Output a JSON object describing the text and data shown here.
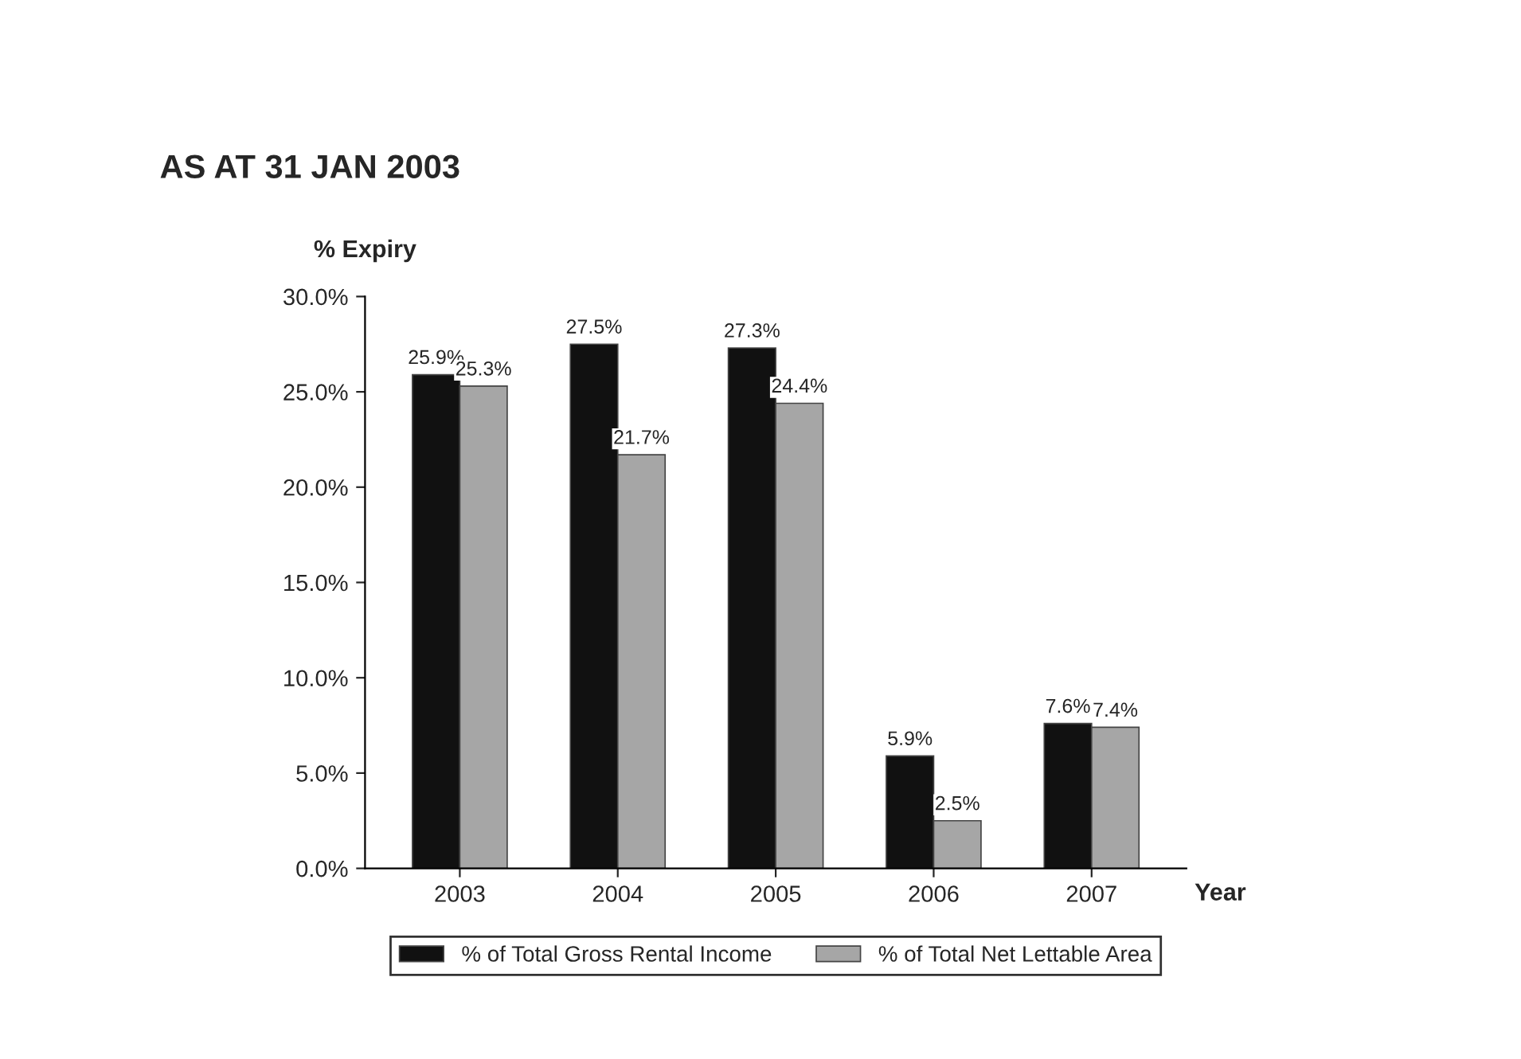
{
  "chart_data": {
    "type": "bar",
    "title": "AS AT 31 JAN 2003",
    "ylabel": "% Expiry",
    "xlabel": "Year",
    "categories": [
      "2003",
      "2004",
      "2005",
      "2006",
      "2007"
    ],
    "series": [
      {
        "name": "% of Total Gross Rental Income",
        "color": "#111111",
        "values": [
          25.9,
          27.5,
          27.3,
          5.9,
          7.6
        ],
        "value_labels": [
          "25.9%",
          "27.5%",
          "27.3%",
          "5.9%",
          "7.6%"
        ]
      },
      {
        "name": "% of Total Net Lettable Area",
        "color": "#a6a6a6",
        "values": [
          25.3,
          21.7,
          24.4,
          2.5,
          7.4
        ],
        "value_labels": [
          "25.3%",
          "21.7%",
          "24.4%",
          "2.5%",
          "7.4%"
        ]
      }
    ],
    "ylim": [
      0,
      30
    ],
    "yticks": [
      {
        "value": 0,
        "label": "0.0%"
      },
      {
        "value": 5,
        "label": "5.0%"
      },
      {
        "value": 10,
        "label": "10.0%"
      },
      {
        "value": 15,
        "label": "15.0%"
      },
      {
        "value": 20,
        "label": "20.0%"
      },
      {
        "value": 25,
        "label": "25.0%"
      },
      {
        "value": 30,
        "label": "30.0%"
      }
    ],
    "grid": false,
    "legend": "bottom"
  }
}
